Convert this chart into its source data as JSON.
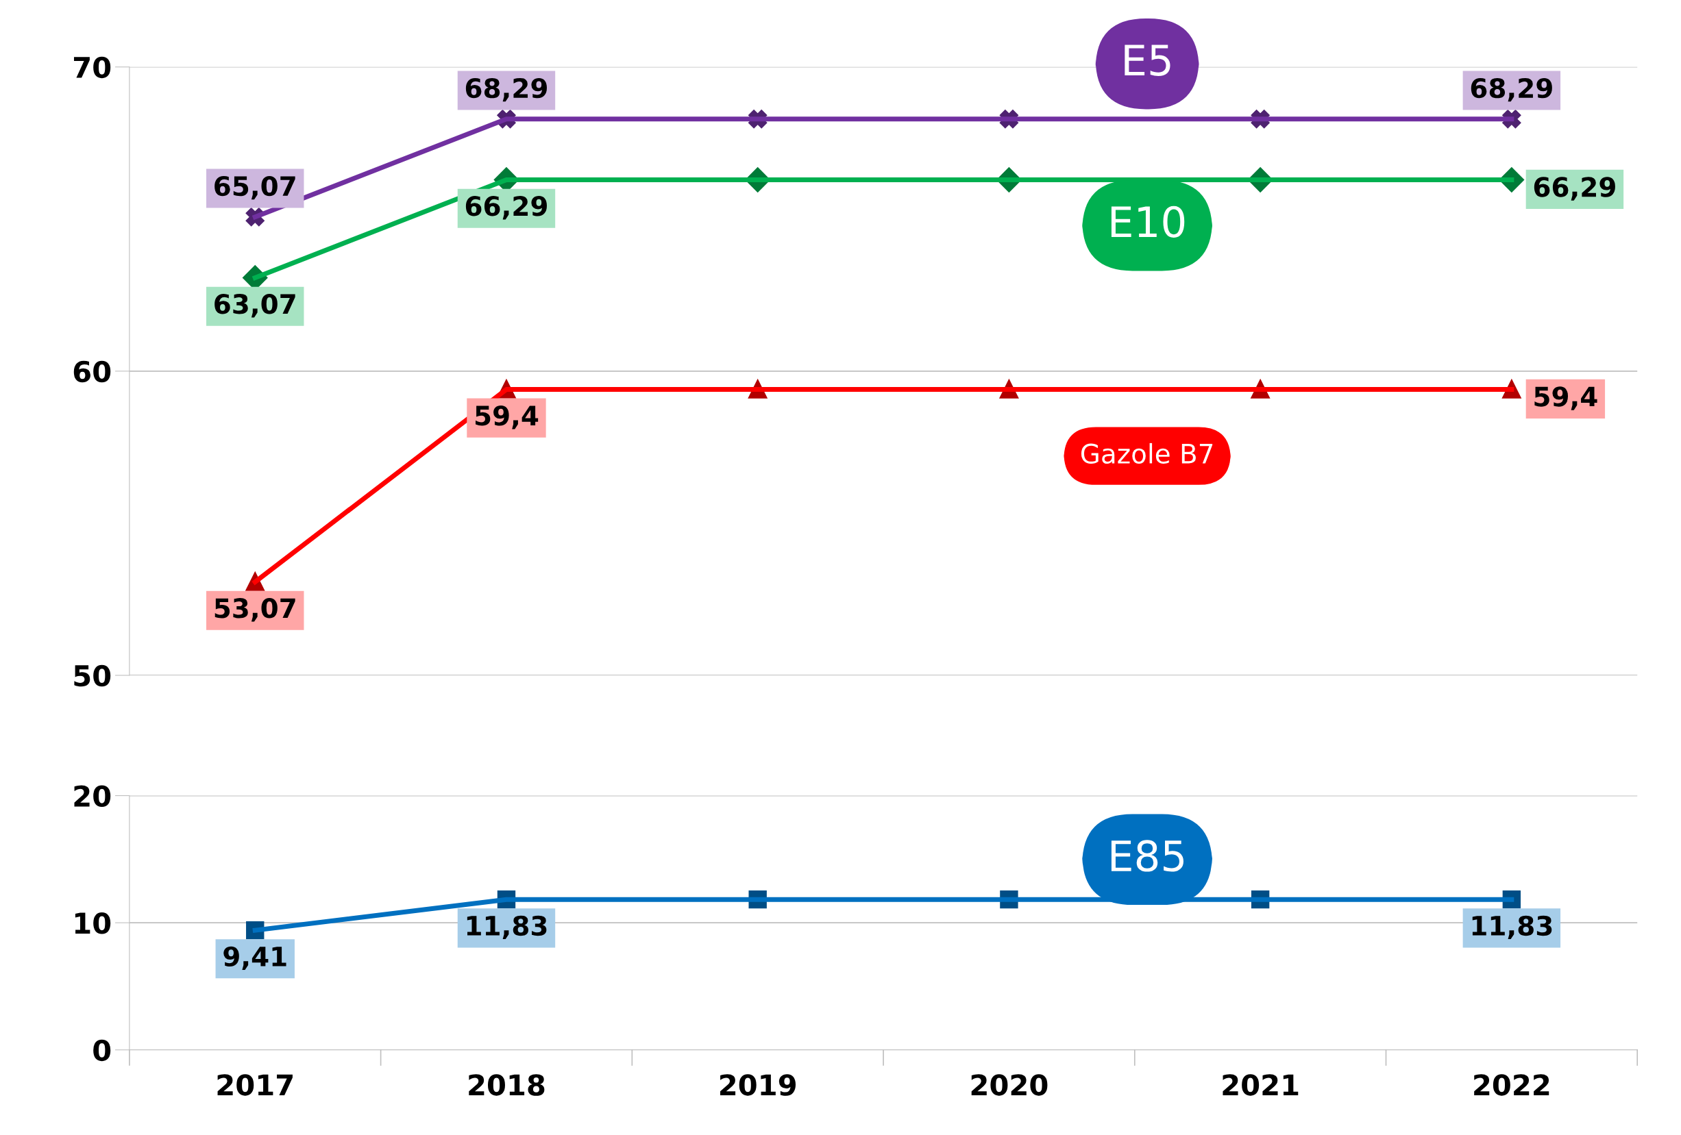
{
  "chart_data": [
    {
      "type": "line",
      "categories": [
        "2017",
        "2018",
        "2019",
        "2020",
        "2021",
        "2022"
      ],
      "ylim": [
        50,
        70
      ],
      "yticks": [
        50,
        60,
        70
      ],
      "tick_labels": "y",
      "grid": "y",
      "legend": false,
      "line_style": "solid",
      "series": [
        {
          "name": "E5",
          "color": "#7030a0",
          "marker": "cross",
          "values": [
            65.07,
            68.29,
            68.29,
            68.29,
            68.29,
            68.29
          ],
          "value_labels": [
            "65,07",
            "68,29",
            null,
            null,
            null,
            "68,29"
          ]
        },
        {
          "name": "E10",
          "color": "#00b050",
          "marker": "diamond",
          "values": [
            63.07,
            66.29,
            66.29,
            66.29,
            66.29,
            66.29
          ],
          "value_labels": [
            "63,07",
            "66,29",
            null,
            null,
            null,
            "66,29"
          ]
        },
        {
          "name": "Gazole B7",
          "color": "#ff0000",
          "marker": "triangle",
          "values": [
            53.07,
            59.4,
            59.4,
            59.4,
            59.4,
            59.4
          ],
          "value_labels": [
            "53,07",
            "59,4",
            null,
            null,
            null,
            "59,4"
          ]
        }
      ]
    },
    {
      "type": "line",
      "categories": [
        "2017",
        "2018",
        "2019",
        "2020",
        "2021",
        "2022"
      ],
      "ylim": [
        0,
        20
      ],
      "yticks": [
        0,
        10,
        20
      ],
      "grid": "y",
      "legend": false,
      "line_style": "solid",
      "series": [
        {
          "name": "E85",
          "color": "#0070c0",
          "marker": "square",
          "values": [
            9.41,
            11.83,
            11.83,
            11.83,
            11.83,
            11.83
          ],
          "value_labels": [
            "9,41",
            "11,83",
            null,
            null,
            null,
            "11,83"
          ]
        }
      ]
    }
  ]
}
